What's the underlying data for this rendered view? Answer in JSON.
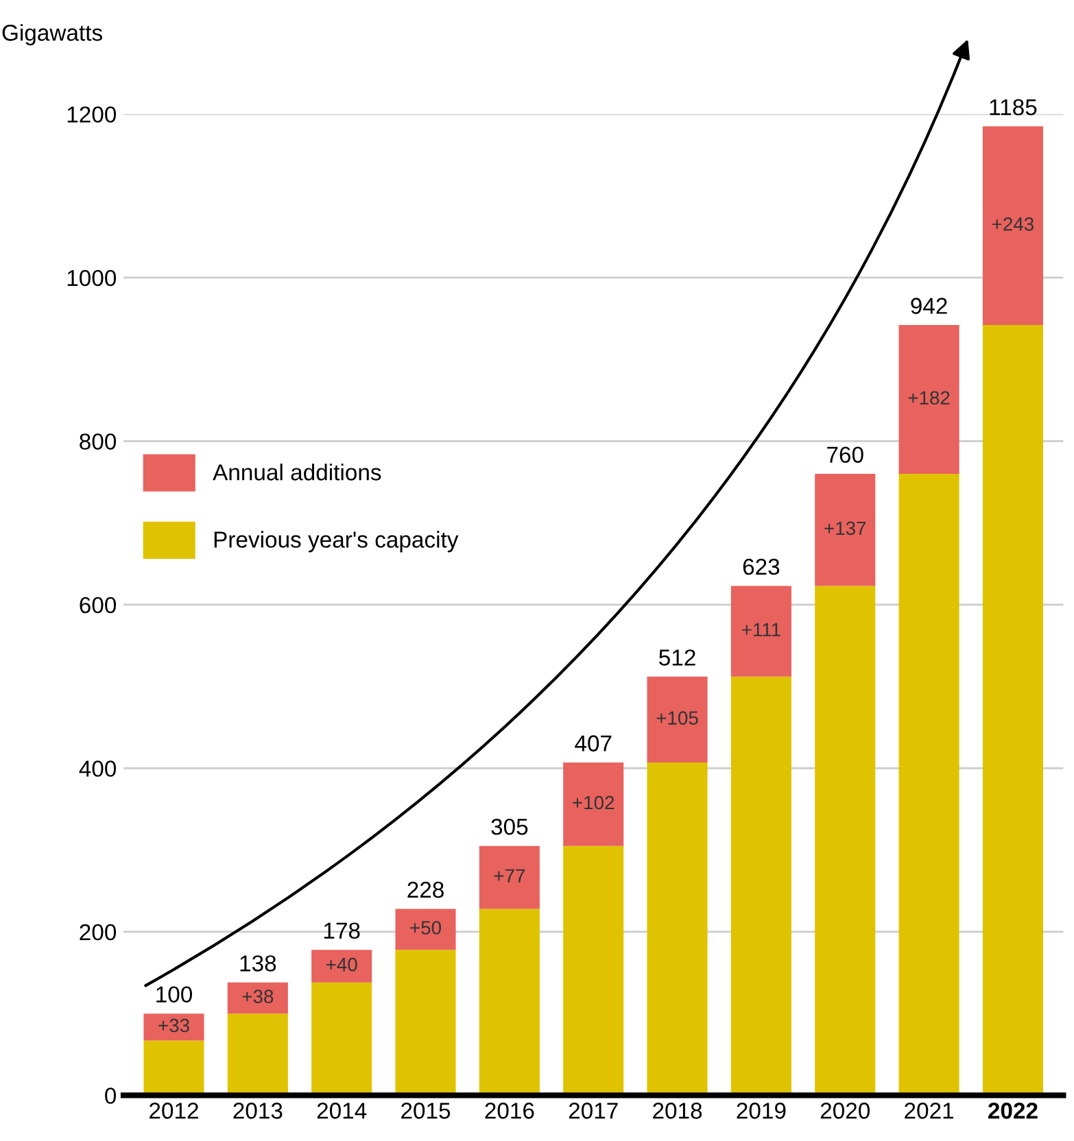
{
  "chart_data": {
    "type": "bar",
    "stacked": true,
    "ylabel": "Gigawatts",
    "categories": [
      "2012",
      "2013",
      "2014",
      "2015",
      "2016",
      "2017",
      "2018",
      "2019",
      "2020",
      "2021",
      "2022"
    ],
    "series": [
      {
        "name": "Previous year's capacity",
        "color": "#dfc300",
        "values": [
          67,
          100,
          138,
          178,
          228,
          305,
          407,
          512,
          623,
          760,
          942
        ]
      },
      {
        "name": "Annual additions",
        "color": "#e8625e",
        "values": [
          33,
          38,
          40,
          50,
          77,
          102,
          105,
          111,
          137,
          182,
          243
        ],
        "value_labels": [
          "+33",
          "+38",
          "+40",
          "+50",
          "+77",
          "+102",
          "+105",
          "+111",
          "+137",
          "+182",
          "+243"
        ]
      }
    ],
    "totals": [
      "100",
      "138",
      "178",
      "228",
      "305",
      "407",
      "512",
      "623",
      "760",
      "942",
      "1185"
    ],
    "ylim": [
      0,
      1200
    ],
    "yticks": [
      0,
      200,
      400,
      600,
      800,
      1000,
      1200
    ],
    "grid": "y",
    "legend": "center left"
  }
}
